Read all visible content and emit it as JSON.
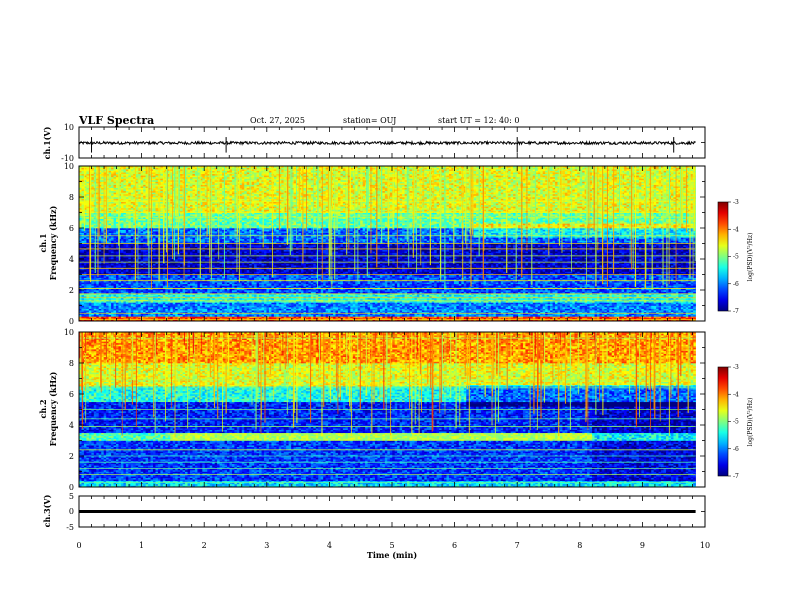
{
  "header": {
    "title": "VLF Spectra",
    "date": "Oct. 27, 2025",
    "station": "station= OUJ",
    "start": "start UT =   12: 40: 0"
  },
  "chart_data": [
    {
      "type": "line",
      "name": "ch1-waveform",
      "ylabel": "ch.1(V)",
      "ylim": [
        -10,
        10
      ],
      "yticks": [
        "10",
        "-10"
      ],
      "xlim": [
        0,
        10
      ],
      "x": [
        0,
        9.85
      ],
      "values": [
        -0.3,
        -0.3
      ],
      "spikes": [
        0.2,
        2.35,
        7.0,
        9.5
      ]
    },
    {
      "type": "heatmap",
      "name": "ch1-spectrogram",
      "ylabel": "ch.1\nFrequency (kHz)",
      "ylabel_lines": [
        "ch.1",
        "Frequency (kHz)"
      ],
      "ylim": [
        0,
        10
      ],
      "yticks": [
        "0",
        "2",
        "4",
        "6",
        "8",
        "10"
      ],
      "xlim": [
        0,
        10
      ],
      "data_end_min": 9.85,
      "colorbar": {
        "label": "log(PSD)(V²/Hz)",
        "range": [
          -7,
          -3
        ],
        "ticks": [
          "-3",
          "-4",
          "-5",
          "-6",
          "-7"
        ]
      },
      "bands": [
        {
          "f": [
            0.0,
            0.3
          ],
          "v": -3.8
        },
        {
          "f": [
            0.3,
            1.2
          ],
          "v": -6.0
        },
        {
          "f": [
            1.2,
            1.8
          ],
          "v": -5.4
        },
        {
          "f": [
            1.8,
            3.0
          ],
          "v": -6.2
        },
        {
          "f": [
            3.0,
            5.0
          ],
          "v": -6.7
        },
        {
          "f": [
            5.0,
            6.0
          ],
          "v": -6.1
        },
        {
          "f": [
            6.0,
            7.0
          ],
          "v": -5.1
        },
        {
          "f": [
            7.0,
            10.0
          ],
          "v": -4.6
        }
      ],
      "lines_khz": [
        0.1,
        0.5,
        1.3,
        1.5,
        1.75,
        2.1,
        2.6,
        3.0,
        3.4,
        3.8,
        4.2,
        4.65,
        5.0,
        5.5,
        6.7,
        7.0,
        7.7
      ],
      "lines_v": -4.5
    },
    {
      "type": "heatmap",
      "name": "ch2-spectrogram",
      "ylabel": "ch.2\nFrequency (kHz)",
      "ylabel_lines": [
        "ch.2",
        "Frequency (kHz)"
      ],
      "ylim": [
        0,
        10
      ],
      "yticks": [
        "0",
        "2",
        "4",
        "6",
        "8",
        "10"
      ],
      "xlim": [
        0,
        10
      ],
      "data_end_min": 9.85,
      "colorbar": {
        "label": "log(PSD)(V²/Hz)",
        "range": [
          -7,
          -3
        ],
        "ticks": [
          "-3",
          "-4",
          "-5",
          "-6",
          "-7"
        ]
      },
      "bands": [
        {
          "f": [
            0.0,
            0.4
          ],
          "v": -5.6
        },
        {
          "f": [
            0.4,
            3.0
          ],
          "v": -6.3
        },
        {
          "f": [
            3.0,
            3.5
          ],
          "v": -5.2
        },
        {
          "f": [
            3.5,
            5.5
          ],
          "v": -6.4
        },
        {
          "f": [
            5.5,
            6.5
          ],
          "v": -5.4
        },
        {
          "f": [
            6.5,
            8.0
          ],
          "v": -4.6
        },
        {
          "f": [
            8.0,
            10.0
          ],
          "v": -4.1
        }
      ],
      "hum": {
        "t": [
          1.45,
          8.2
        ],
        "f": [
          3.0,
          3.5
        ],
        "v": -4.8
      },
      "lines_khz": [
        0.3,
        0.8,
        1.2,
        1.6,
        2.0,
        2.4,
        3.9,
        4.4,
        5.0,
        6.4,
        6.9,
        9.6
      ],
      "lines_v": -5.0
    },
    {
      "type": "line",
      "name": "ch3-waveform",
      "ylabel": "ch.3(V)",
      "ylim": [
        -5,
        5
      ],
      "yticks": [
        "5",
        "0",
        "-5"
      ],
      "xlim": [
        0,
        10
      ],
      "x": [
        0,
        9.85
      ],
      "values": [
        0,
        0
      ]
    }
  ],
  "xaxis": {
    "label": "Time (min)",
    "ticks": [
      "0",
      "1",
      "2",
      "3",
      "4",
      "5",
      "6",
      "7",
      "8",
      "9",
      "10"
    ]
  }
}
